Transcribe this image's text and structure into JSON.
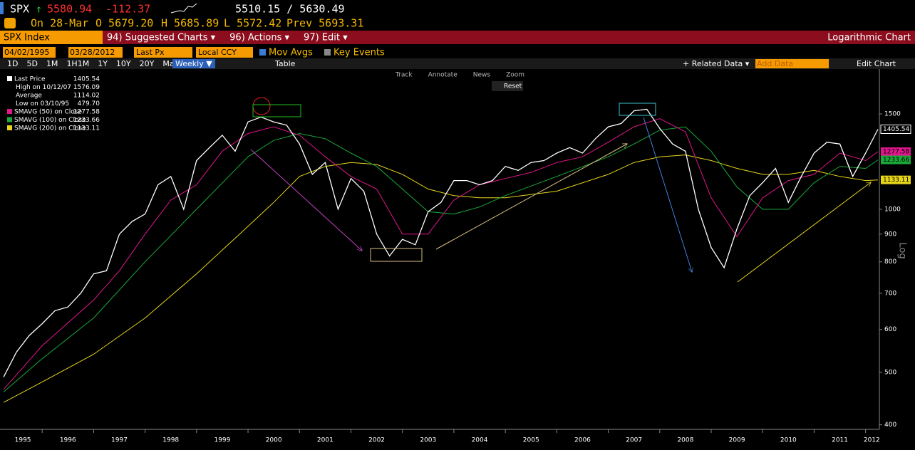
{
  "header": {
    "ticker": "SPX",
    "arrow": "↑",
    "last": "5580.94",
    "change": "-112.37",
    "range": "5510.15 / 5630.49",
    "date": "On 28-Mar",
    "open": "O 5679.20",
    "high": "H 5685.89",
    "low": "L 5572.42",
    "prev": "Prev 5693.31"
  },
  "menu": {
    "security": "SPX Index",
    "items": [
      "94) Suggested Charts ▾",
      "96) Actions ▾",
      "97) Edit ▾"
    ],
    "chart_mode": "Logarithmic Chart"
  },
  "controls": {
    "start": "04/02/1995",
    "end": "03/28/2012",
    "field": "Last Px",
    "currency": "Local CCY",
    "mov_avgs": "Mov Avgs",
    "key_events": "Key Events"
  },
  "toolbar": {
    "periods": [
      "1D",
      "5D",
      "1M",
      "1H1M",
      "1Y",
      "10Y",
      "20Y",
      "Max"
    ],
    "frequency": "Weekly ▼",
    "table": "Table",
    "related": "+ Related Data ▾",
    "add_data": "Add Data",
    "edit_chart": "Edit Chart"
  },
  "chart_tools": {
    "items": [
      "Track",
      "Annotate",
      "News",
      "Zoom"
    ],
    "reset": "Reset"
  },
  "chart_data": {
    "type": "line",
    "log_scale": true,
    "y_axis_label": "Log",
    "xlim": [
      1995.25,
      2012.24
    ],
    "xticks": [
      1995,
      1996,
      1997,
      1998,
      1999,
      2000,
      2001,
      2002,
      2003,
      2004,
      2005,
      2006,
      2007,
      2008,
      2009,
      2010,
      2011,
      2012
    ],
    "ylim": [
      396,
      1815
    ],
    "yticks": [
      400,
      500,
      600,
      700,
      800,
      900,
      1000,
      1500
    ],
    "stats": [
      {
        "label": "High on 10/12/07",
        "value": "1576.09"
      },
      {
        "label": "Average",
        "value": "1114.02"
      },
      {
        "label": "Low on 03/10/95",
        "value": "479.70"
      }
    ],
    "series": [
      {
        "name": "Last Price",
        "color": "#ffffff",
        "x": [
          1995.25,
          1995.5,
          1995.75,
          1996,
          1996.25,
          1996.5,
          1996.75,
          1997,
          1997.25,
          1997.5,
          1997.75,
          1998,
          1998.25,
          1998.5,
          1998.75,
          1999,
          1999.25,
          1999.5,
          1999.75,
          2000,
          2000.25,
          2000.5,
          2000.75,
          2001,
          2001.25,
          2001.5,
          2001.75,
          2002,
          2002.25,
          2002.5,
          2002.75,
          2003,
          2003.25,
          2003.5,
          2003.75,
          2004,
          2004.25,
          2004.5,
          2004.75,
          2005,
          2005.25,
          2005.5,
          2005.75,
          2006,
          2006.25,
          2006.5,
          2006.75,
          2007,
          2007.25,
          2007.5,
          2007.75,
          2008,
          2008.25,
          2008.5,
          2008.75,
          2009,
          2009.25,
          2009.5,
          2009.75,
          2010,
          2010.25,
          2010.5,
          2010.75,
          2011,
          2011.25,
          2011.5,
          2011.75,
          2012,
          2012.24
        ],
        "values": [
          490,
          545,
          585,
          615,
          650,
          660,
          700,
          760,
          770,
          900,
          950,
          980,
          1110,
          1150,
          1000,
          1230,
          1300,
          1370,
          1280,
          1450,
          1480,
          1450,
          1430,
          1320,
          1160,
          1220,
          1000,
          1140,
          1080,
          900,
          820,
          880,
          860,
          990,
          1030,
          1130,
          1130,
          1110,
          1130,
          1200,
          1180,
          1220,
          1230,
          1270,
          1300,
          1270,
          1350,
          1420,
          1440,
          1520,
          1530,
          1410,
          1320,
          1280,
          1000,
          850,
          780,
          920,
          1060,
          1120,
          1190,
          1030,
          1150,
          1270,
          1330,
          1320,
          1150,
          1270,
          1405.54
        ]
      },
      {
        "name": "SMAVG (50)  on Close",
        "color": "#e0168c",
        "x": [
          1995.25,
          1996,
          1997,
          1997.5,
          1998,
          1998.5,
          1999,
          1999.5,
          2000,
          2000.5,
          2001,
          2001.5,
          2002,
          2002.5,
          2003,
          2003.5,
          2004,
          2004.5,
          2005,
          2005.5,
          2006,
          2006.5,
          2007,
          2007.5,
          2008,
          2008.5,
          2009,
          2009.5,
          2010,
          2010.5,
          2011,
          2011.5,
          2012,
          2012.24
        ],
        "values": [
          465,
          560,
          680,
          770,
          900,
          1040,
          1110,
          1280,
          1380,
          1420,
          1370,
          1250,
          1150,
          1090,
          900,
          900,
          1040,
          1110,
          1140,
          1170,
          1220,
          1250,
          1330,
          1420,
          1470,
          1390,
          1050,
          890,
          1050,
          1130,
          1160,
          1270,
          1230,
          1277.58
        ]
      },
      {
        "name": "SMAVG (100)  on Close",
        "color": "#1aaa3a",
        "x": [
          1995.25,
          1996,
          1997,
          1998,
          1999,
          2000,
          2000.5,
          2001,
          2001.5,
          2002,
          2002.5,
          2003,
          2003.5,
          2004,
          2004.5,
          2005,
          2006,
          2007,
          2007.5,
          2008,
          2008.5,
          2009,
          2009.5,
          2010,
          2010.5,
          2011,
          2011.5,
          2012,
          2012.24
        ],
        "values": [
          460,
          530,
          630,
          800,
          1000,
          1250,
          1340,
          1380,
          1350,
          1270,
          1200,
          1090,
          990,
          980,
          1010,
          1060,
          1150,
          1250,
          1320,
          1400,
          1420,
          1280,
          1100,
          1000,
          1000,
          1120,
          1200,
          1190,
          1233.66
        ]
      },
      {
        "name": "SMAVG (200)  on Close",
        "color": "#e6d51a",
        "x": [
          1995.25,
          1996,
          1997,
          1998,
          1999,
          2000,
          2000.5,
          2001,
          2001.5,
          2002,
          2002.5,
          2003,
          2003.5,
          2004,
          2004.5,
          2005,
          2006,
          2007,
          2007.5,
          2008,
          2008.5,
          2009,
          2009.5,
          2010,
          2010.5,
          2011,
          2011.5,
          2012,
          2012.24
        ],
        "values": [
          440,
          480,
          540,
          630,
          760,
          930,
          1030,
          1150,
          1200,
          1220,
          1210,
          1160,
          1090,
          1060,
          1050,
          1050,
          1080,
          1160,
          1220,
          1250,
          1260,
          1230,
          1190,
          1160,
          1160,
          1180,
          1150,
          1130,
          1133.11
        ]
      }
    ]
  }
}
